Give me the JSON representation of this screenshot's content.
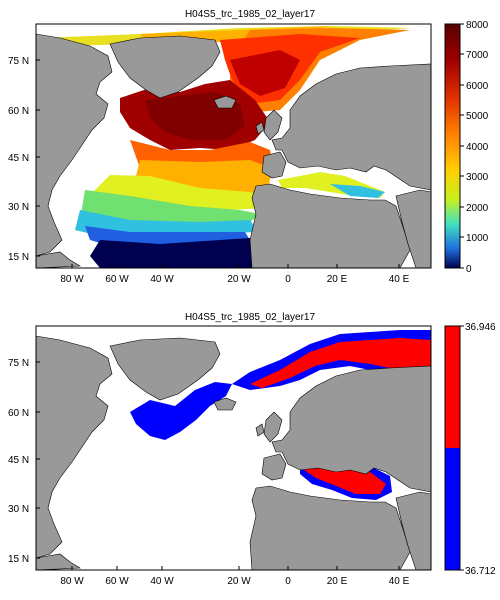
{
  "panels": [
    {
      "title": "H04S5_trc_1985_02_layer17",
      "colorbar": {
        "type": "continuous",
        "ticks": [
          "8000",
          "7000",
          "6000",
          "5000",
          "4000",
          "3000",
          "2000",
          "1000",
          "0"
        ],
        "colors": [
          "#5a0000",
          "#a00000",
          "#e03000",
          "#ff8000",
          "#ffd000",
          "#c8f020",
          "#40e0c0",
          "#2070e0",
          "#000050"
        ]
      }
    },
    {
      "title": "H04S5_trc_1985_02_layer17",
      "colorbar": {
        "type": "two-class",
        "top_label": "36.946",
        "bottom_label": "36.712",
        "top_color": "#ff0000",
        "bottom_color": "#0000ff"
      }
    }
  ],
  "axes": {
    "lon_labels": [
      "80 W",
      "60 W",
      "40 W",
      "20 W",
      "0",
      "20 E",
      "40 E"
    ],
    "lat_labels": [
      "75 N",
      "60 N",
      "45 N",
      "30 N",
      "15 N"
    ]
  },
  "colors": {
    "land": "#999999",
    "water": "#ffffff",
    "coast": "#000000"
  }
}
